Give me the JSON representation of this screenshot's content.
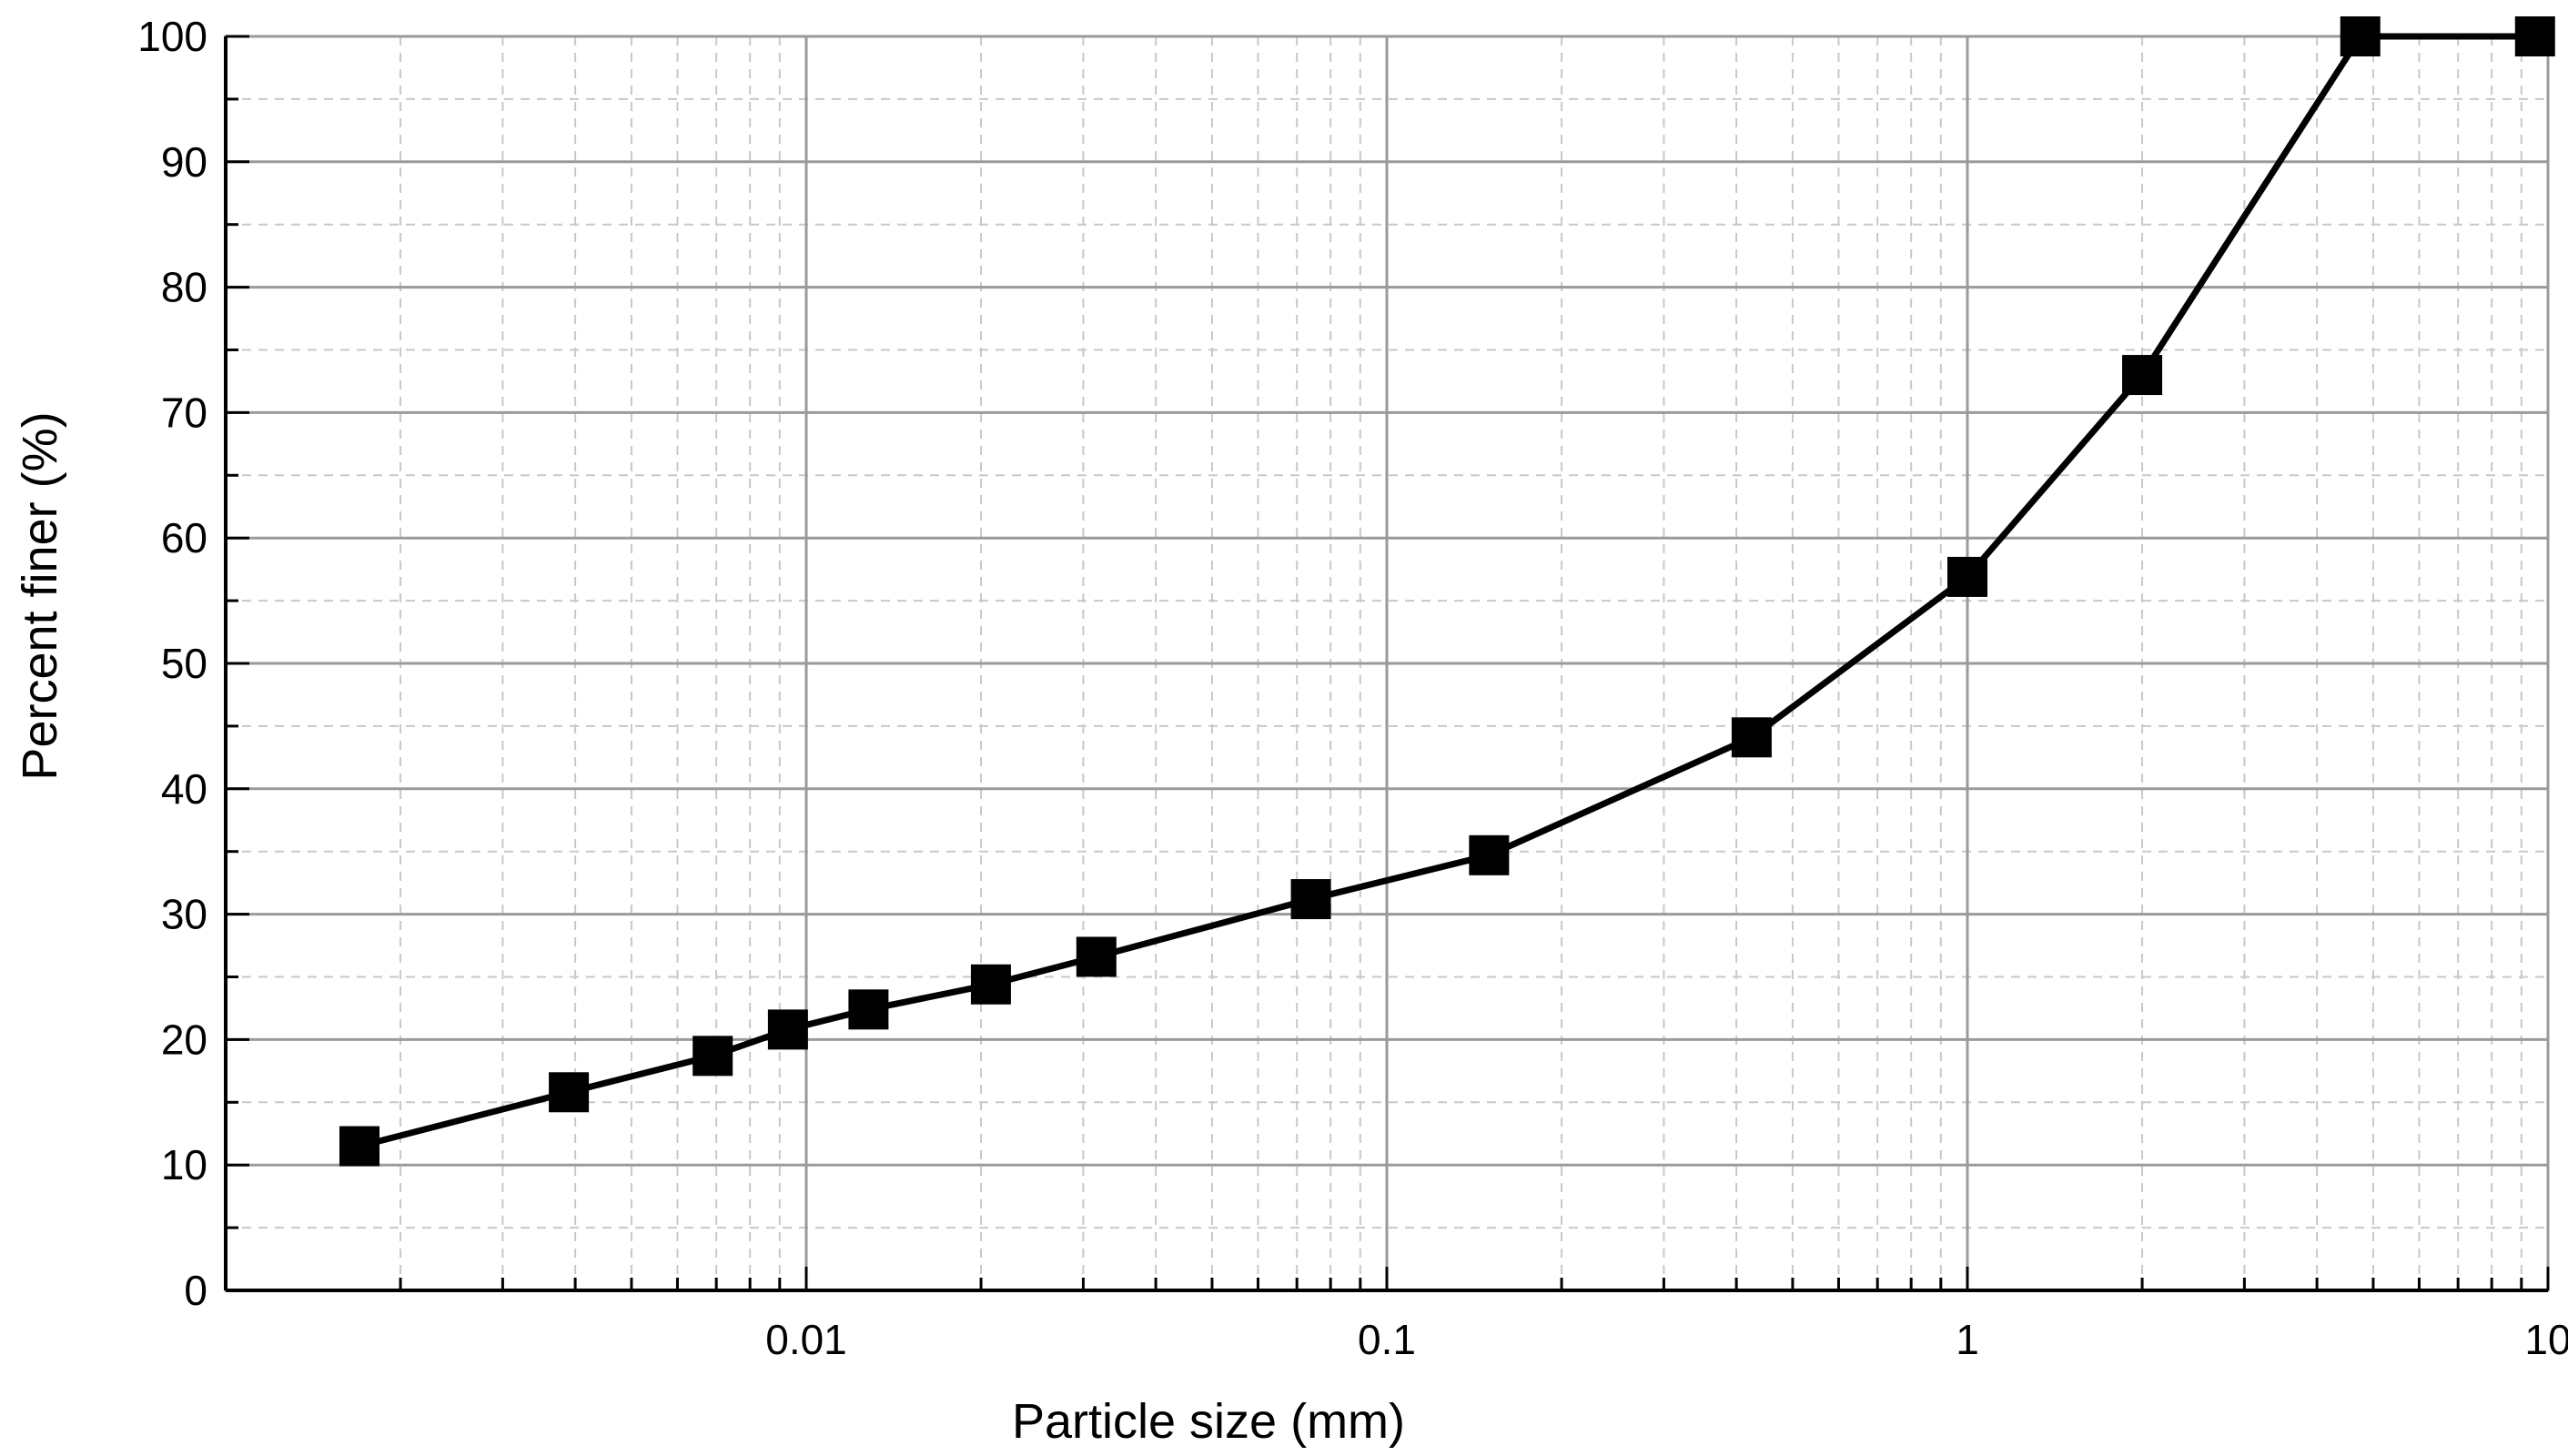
{
  "chart_data": {
    "type": "line",
    "title": "",
    "xlabel": "Particle size (mm)",
    "ylabel": "Percent finer (%)",
    "x_scale": "log",
    "xlim": [
      0.001,
      10
    ],
    "ylim": [
      0,
      100
    ],
    "x_ticks": [
      0.01,
      0.1,
      1,
      10
    ],
    "x_tick_labels": [
      "0.01",
      "0.1",
      "1",
      "10"
    ],
    "y_ticks": [
      0,
      10,
      20,
      30,
      40,
      50,
      60,
      70,
      80,
      90,
      100
    ],
    "y_tick_labels": [
      "0",
      "10",
      "20",
      "30",
      "40",
      "50",
      "60",
      "70",
      "80",
      "90",
      "100"
    ],
    "grid": true,
    "legend": "none",
    "series": [
      {
        "marker": "square",
        "color": "#000000",
        "x": [
          0.0017,
          0.0039,
          0.0069,
          0.0093,
          0.0128,
          0.0208,
          0.0316,
          0.074,
          0.15,
          0.425,
          1.0,
          2.0,
          4.75,
          9.5
        ],
        "y": [
          11.5,
          15.8,
          18.7,
          20.8,
          22.4,
          24.4,
          26.6,
          31.2,
          34.7,
          44.1,
          56.9,
          73.0,
          100,
          100
        ]
      }
    ]
  }
}
